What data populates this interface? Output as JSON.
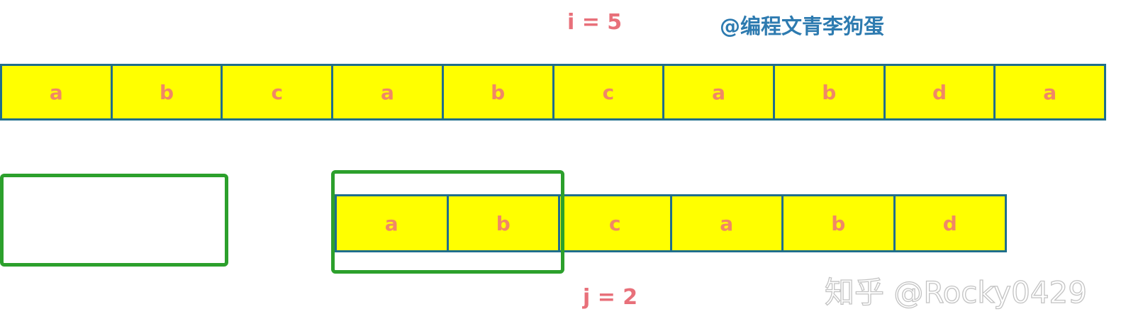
{
  "i_label": "i =  5",
  "j_label": "j = 2",
  "watermark_top": "@编程文青李狗蛋",
  "watermark_bottom": "知乎 @Rocky0429",
  "main_string": [
    "a",
    "b",
    "c",
    "a",
    "b",
    "c",
    "a",
    "b",
    "d",
    "a"
  ],
  "pattern_string": [
    "a",
    "b",
    "c",
    "a",
    "b",
    "d"
  ],
  "colors": {
    "cell_fill": "#ffff00",
    "cell_border": "#1f6e8c",
    "cell_text": "#f08866",
    "highlight_box": "#2ca02c",
    "index_label": "#e8707a",
    "watermark_top": "#2e7bb0"
  }
}
